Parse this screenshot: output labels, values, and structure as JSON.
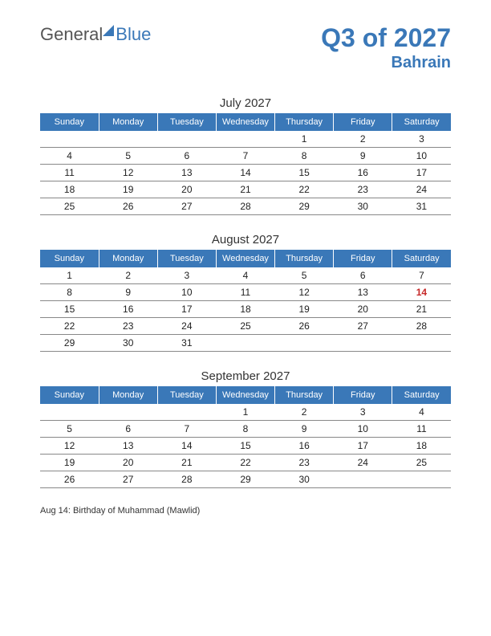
{
  "logo": {
    "part1": "General",
    "part2": "Blue"
  },
  "title": "Q3 of 2027",
  "subtitle": "Bahrain",
  "colors": {
    "brand": "#3a78b8",
    "header_bg": "#3a78b8",
    "header_fg": "#ffffff",
    "row_border": "#888888",
    "holiday": "#c62828",
    "text": "#222222",
    "logo_gray": "#555555",
    "background": "#ffffff"
  },
  "weekdays": [
    "Sunday",
    "Monday",
    "Tuesday",
    "Wednesday",
    "Thursday",
    "Friday",
    "Saturday"
  ],
  "months": [
    {
      "title": "July 2027",
      "rows": [
        [
          "",
          "",
          "",
          "",
          "1",
          "2",
          "3"
        ],
        [
          "4",
          "5",
          "6",
          "7",
          "8",
          "9",
          "10"
        ],
        [
          "11",
          "12",
          "13",
          "14",
          "15",
          "16",
          "17"
        ],
        [
          "18",
          "19",
          "20",
          "21",
          "22",
          "23",
          "24"
        ],
        [
          "25",
          "26",
          "27",
          "28",
          "29",
          "30",
          "31"
        ]
      ],
      "holidays": []
    },
    {
      "title": "August 2027",
      "rows": [
        [
          "1",
          "2",
          "3",
          "4",
          "5",
          "6",
          "7"
        ],
        [
          "8",
          "9",
          "10",
          "11",
          "12",
          "13",
          "14"
        ],
        [
          "15",
          "16",
          "17",
          "18",
          "19",
          "20",
          "21"
        ],
        [
          "22",
          "23",
          "24",
          "25",
          "26",
          "27",
          "28"
        ],
        [
          "29",
          "30",
          "31",
          "",
          "",
          "",
          ""
        ]
      ],
      "holidays": [
        {
          "row": 1,
          "col": 6
        }
      ]
    },
    {
      "title": "September 2027",
      "rows": [
        [
          "",
          "",
          "",
          "1",
          "2",
          "3",
          "4"
        ],
        [
          "5",
          "6",
          "7",
          "8",
          "9",
          "10",
          "11"
        ],
        [
          "12",
          "13",
          "14",
          "15",
          "16",
          "17",
          "18"
        ],
        [
          "19",
          "20",
          "21",
          "22",
          "23",
          "24",
          "25"
        ],
        [
          "26",
          "27",
          "28",
          "29",
          "30",
          "",
          ""
        ]
      ],
      "holidays": []
    }
  ],
  "holiday_list": [
    "Aug 14: Birthday of Muhammad (Mawlid)"
  ]
}
